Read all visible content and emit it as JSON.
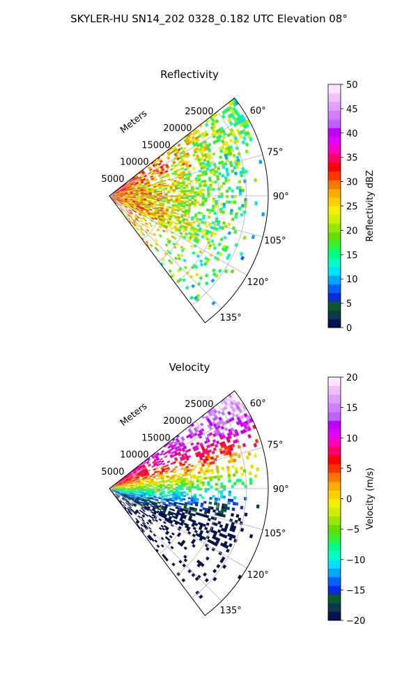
{
  "figure": {
    "title": "SKYLER-HU  SN14_202  0328_0.182 UTC Elevation 08°"
  },
  "range_axis_label": "Meters",
  "chart_data": [
    {
      "type": "ppi_sector",
      "field": "reflectivity",
      "title": "Reflectivity",
      "azimuth_range_deg": [
        52,
        143
      ],
      "azimuth_ticks": [
        60,
        75,
        90,
        105,
        120,
        135
      ],
      "azimuth_tick_labels": [
        "60°",
        "75°",
        "90°",
        "105°",
        "120°",
        "135°"
      ],
      "range_max_m": 29000,
      "range_ticks": [
        5000,
        10000,
        15000,
        20000,
        25000
      ],
      "range_tick_labels": [
        "5000",
        "10000",
        "15000",
        "20000",
        "25000"
      ],
      "grid": true,
      "colorbar": {
        "label": "Reflectivity dBZ",
        "min": 0,
        "max": 50,
        "ticks": [
          0,
          5,
          10,
          15,
          20,
          25,
          30,
          35,
          40,
          45,
          50
        ],
        "tick_labels": [
          "0",
          "5",
          "10",
          "15",
          "20",
          "25",
          "30",
          "35",
          "40",
          "45",
          "50"
        ],
        "palette": [
          "#06124e",
          "#0a3a4a",
          "#0b5a2a",
          "#0c2bd8",
          "#0060ff",
          "#00a6ff",
          "#00e2ff",
          "#00ffc0",
          "#00ff80",
          "#33f233",
          "#66dd00",
          "#99e600",
          "#ccef00",
          "#f0f000",
          "#ffd000",
          "#ffaa00",
          "#ff7700",
          "#ff3300",
          "#ff0000",
          "#ff0066",
          "#ff00c0",
          "#e000ff",
          "#c000ff",
          "#c060ff",
          "#d080ff",
          "#e0a0ff",
          "#f0c0ff",
          "#ffe6ff"
        ]
      }
    },
    {
      "type": "ppi_sector",
      "field": "velocity",
      "title": "Velocity",
      "azimuth_range_deg": [
        52,
        143
      ],
      "azimuth_ticks": [
        60,
        75,
        90,
        105,
        120,
        135
      ],
      "azimuth_tick_labels": [
        "60°",
        "75°",
        "90°",
        "105°",
        "120°",
        "135°"
      ],
      "range_max_m": 29000,
      "range_ticks": [
        5000,
        10000,
        15000,
        20000,
        25000
      ],
      "range_tick_labels": [
        "5000",
        "10000",
        "15000",
        "20000",
        "25000"
      ],
      "grid": true,
      "colorbar": {
        "label": "Velocity (m/s)",
        "min": -20,
        "max": 20,
        "ticks": [
          -20,
          -15,
          -10,
          -5,
          0,
          5,
          10,
          15,
          20
        ],
        "tick_labels": [
          "−20",
          "−15",
          "−10",
          "−5",
          "0",
          "5",
          "10",
          "15",
          "20"
        ],
        "palette": [
          "#06124e",
          "#0a3a4a",
          "#0b5a2a",
          "#0c2bd8",
          "#0060ff",
          "#00a6ff",
          "#00e2ff",
          "#00ffc0",
          "#00ff80",
          "#33f233",
          "#66dd00",
          "#99e600",
          "#ccef00",
          "#f0f000",
          "#ffd000",
          "#ffaa00",
          "#ff7700",
          "#ff3300",
          "#ff0000",
          "#ff0066",
          "#ff00c0",
          "#e000ff",
          "#c000ff",
          "#c060ff",
          "#d080ff",
          "#e0a0ff",
          "#f0c0ff",
          "#ffe6ff"
        ]
      }
    }
  ]
}
